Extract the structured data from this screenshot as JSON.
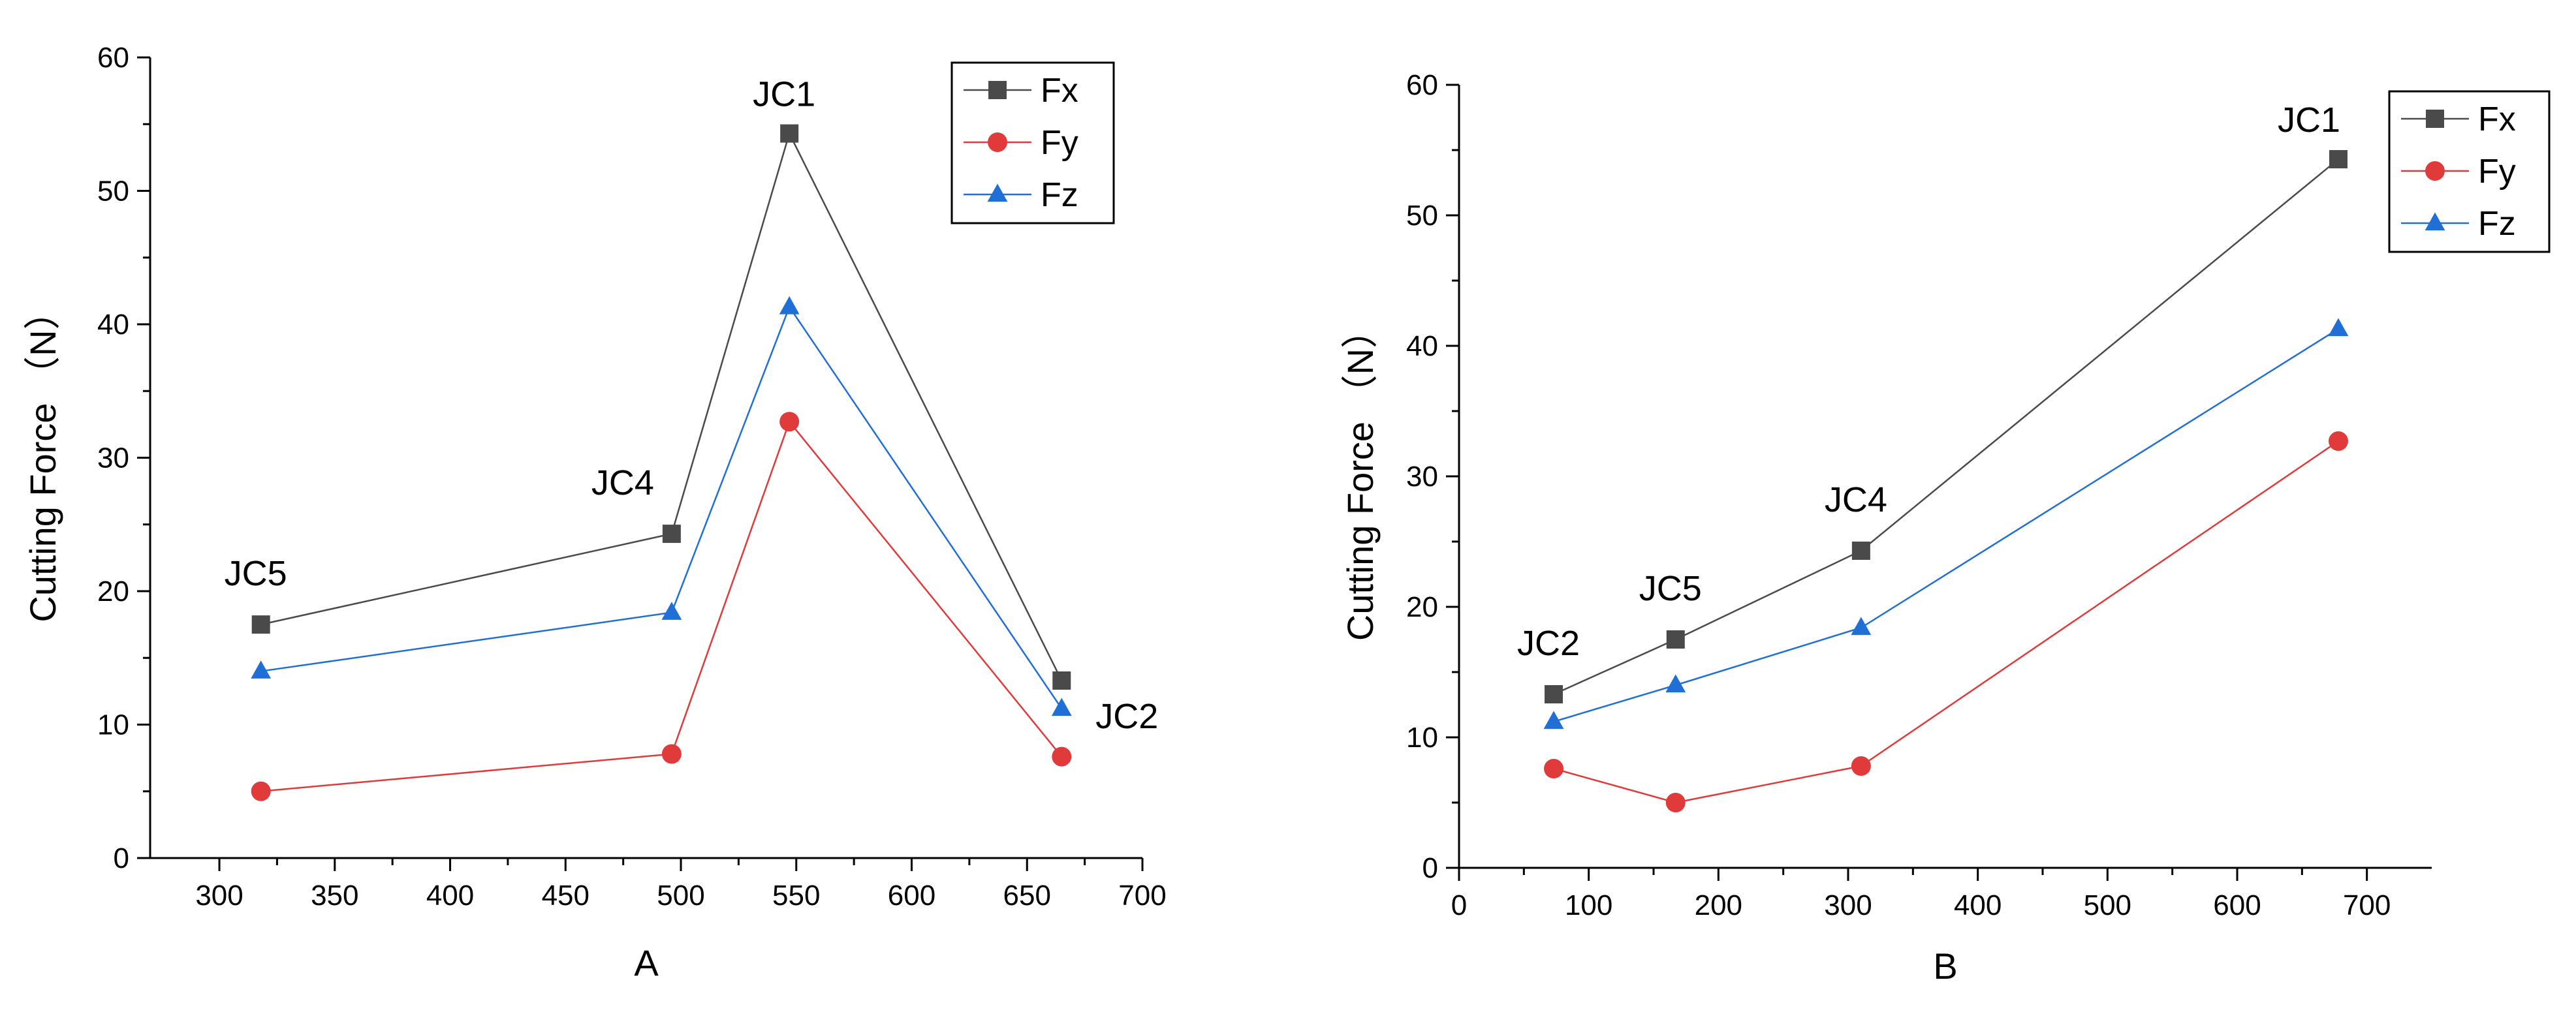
{
  "chart_data": [
    {
      "type": "line",
      "xlabel": "A",
      "ylabel": "Cutting Force （N）",
      "xlim": [
        270,
        700
      ],
      "ylim": [
        0,
        60
      ],
      "xticks": [
        300,
        350,
        400,
        450,
        500,
        550,
        600,
        650,
        700
      ],
      "yticks": [
        0,
        10,
        20,
        30,
        40,
        50,
        60
      ],
      "x": [
        318,
        496,
        547,
        665
      ],
      "point_labels": [
        "JC5",
        "JC4",
        "JC1",
        "JC2"
      ],
      "label_placement": [
        "above",
        "above-left",
        "above",
        "right"
      ],
      "legend": "top-right",
      "series": [
        {
          "name": "Fx",
          "marker": "square",
          "color": "#4a4a4a",
          "values": [
            17.5,
            24.3,
            54.3,
            13.3
          ]
        },
        {
          "name": "Fy",
          "marker": "circle",
          "color": "#e03a3a",
          "values": [
            5.0,
            7.8,
            32.7,
            7.6
          ]
        },
        {
          "name": "Fz",
          "marker": "triangle",
          "color": "#1f6fd6",
          "values": [
            14.0,
            18.4,
            41.3,
            11.2
          ]
        }
      ]
    },
    {
      "type": "line",
      "xlabel": "B",
      "ylabel": "Cutting Force （N）",
      "xlim": [
        0,
        750
      ],
      "ylim": [
        0,
        60
      ],
      "xticks": [
        0,
        100,
        200,
        300,
        400,
        500,
        600,
        700
      ],
      "yticks": [
        0,
        10,
        20,
        30,
        40,
        50,
        60
      ],
      "x": [
        73,
        167,
        310,
        678
      ],
      "point_labels": [
        "JC2",
        "JC5",
        "JC4",
        "JC1"
      ],
      "label_placement": [
        "above",
        "above",
        "above",
        "above-left"
      ],
      "legend": "top-right",
      "series": [
        {
          "name": "Fx",
          "marker": "square",
          "color": "#4a4a4a",
          "values": [
            13.3,
            17.5,
            24.3,
            54.3
          ]
        },
        {
          "name": "Fy",
          "marker": "circle",
          "color": "#e03a3a",
          "values": [
            7.6,
            5.0,
            7.8,
            32.7
          ]
        },
        {
          "name": "Fz",
          "marker": "triangle",
          "color": "#1f6fd6",
          "values": [
            11.2,
            14.0,
            18.4,
            41.3
          ]
        }
      ]
    }
  ]
}
